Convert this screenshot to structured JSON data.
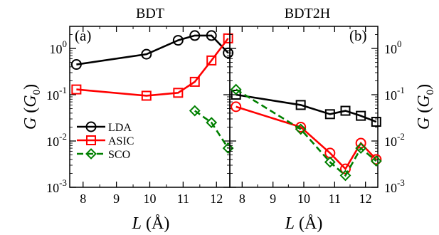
{
  "chart_data": [
    {
      "type": "line",
      "title": "BDT",
      "panel_label": "(a)",
      "xlabel_var": "L",
      "xlabel_unit": "(Å)",
      "ylabel_var": "G",
      "ylabel_unit": "G",
      "ylabel_unit_sub": "0",
      "yscale": "log",
      "xlim": [
        7.6,
        12.4
      ],
      "ylim": [
        0.001,
        3
      ],
      "xticks": [
        "8",
        "9",
        "10",
        "11",
        "12"
      ],
      "yticks": [
        {
          "value": 0.001,
          "base": "10",
          "exp": "-3"
        },
        {
          "value": 0.01,
          "base": "10",
          "exp": "-2"
        },
        {
          "value": 0.1,
          "base": "10",
          "exp": "-1"
        },
        {
          "value": 1,
          "base": "10",
          "exp": "0"
        }
      ],
      "legend": {
        "position": "center-left"
      },
      "series": [
        {
          "name": "LDA",
          "color": "#000000",
          "marker": "circle",
          "dash": "solid",
          "x": [
            7.8,
            9.9,
            10.85,
            11.35,
            11.85,
            12.35
          ],
          "y": [
            0.45,
            0.75,
            1.5,
            1.9,
            1.9,
            0.8
          ]
        },
        {
          "name": "ASIC",
          "color": "#ff0000",
          "marker": "square",
          "dash": "solid",
          "x": [
            7.8,
            9.9,
            10.85,
            11.35,
            11.85,
            12.35
          ],
          "y": [
            0.13,
            0.095,
            0.11,
            0.19,
            0.55,
            1.65
          ]
        },
        {
          "name": "SCO",
          "color": "#008000",
          "marker": "diamond",
          "dash": "dashed",
          "x": [
            11.35,
            11.85,
            12.35
          ],
          "y": [
            0.045,
            0.025,
            0.007
          ]
        }
      ]
    },
    {
      "type": "line",
      "title": "BDT2H",
      "panel_label": "(b)",
      "xlabel_var": "L",
      "xlabel_unit": "(Å)",
      "ylabel_var": "G",
      "ylabel_unit": "G",
      "ylabel_unit_sub": "0",
      "yscale": "log",
      "xlim": [
        7.6,
        12.4
      ],
      "ylim": [
        0.001,
        3
      ],
      "xticks": [
        "8",
        "9",
        "10",
        "11",
        "12"
      ],
      "yticks": [
        {
          "value": 0.001,
          "base": "10",
          "exp": "-3"
        },
        {
          "value": 0.01,
          "base": "10",
          "exp": "-2"
        },
        {
          "value": 0.1,
          "base": "10",
          "exp": "-1"
        },
        {
          "value": 1,
          "base": "10",
          "exp": "0"
        }
      ],
      "series": [
        {
          "name": "LDA",
          "color": "#000000",
          "marker": "square",
          "dash": "solid",
          "x": [
            7.8,
            9.9,
            10.85,
            11.35,
            11.85,
            12.35
          ],
          "y": [
            0.1,
            0.06,
            0.038,
            0.045,
            0.035,
            0.026
          ]
        },
        {
          "name": "ASIC",
          "color": "#ff0000",
          "marker": "circle",
          "dash": "solid",
          "x": [
            7.8,
            9.9,
            10.85,
            11.35,
            11.85,
            12.35
          ],
          "y": [
            0.055,
            0.02,
            0.0055,
            0.0025,
            0.009,
            0.004
          ]
        },
        {
          "name": "SCO",
          "color": "#008000",
          "marker": "diamond",
          "dash": "dashed",
          "x": [
            7.8,
            9.9,
            10.85,
            11.35,
            11.85,
            12.35
          ],
          "y": [
            0.13,
            0.018,
            0.0035,
            0.0018,
            0.007,
            0.0037
          ]
        }
      ]
    }
  ]
}
